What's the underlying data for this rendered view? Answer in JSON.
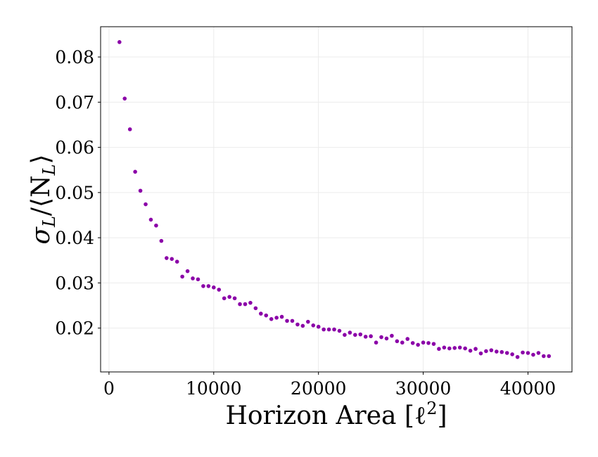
{
  "chart_data": {
    "type": "scatter",
    "xlabel": "Horizon Area [ℓ²]",
    "ylabel": "σ_L/⟨N_L⟩",
    "ylabel_main": "σ",
    "ylabel_sub": "L",
    "ylabel_mid": "/⟨N",
    "ylabel_sub2": "L",
    "ylabel_end": "⟩",
    "xlabel_main": "Horizon Area [ℓ",
    "xlabel_sup": "2",
    "xlabel_end": "]",
    "xlim": [
      -800,
      44200
    ],
    "ylim": [
      0.0103,
      0.0867
    ],
    "xticks": [
      0,
      10000,
      20000,
      30000,
      40000
    ],
    "xtick_labels": [
      "0",
      "10000",
      "20000",
      "30000",
      "40000"
    ],
    "yticks": [
      0.02,
      0.03,
      0.04,
      0.05,
      0.06,
      0.07,
      0.08
    ],
    "ytick_labels": [
      "0.02",
      "0.03",
      "0.04",
      "0.05",
      "0.06",
      "0.07",
      "0.08"
    ],
    "grid": true,
    "marker_color": "#8b00a8",
    "series": [
      {
        "x": [
          1000,
          1500,
          2000,
          2500,
          3000,
          3500,
          4000,
          4500,
          5000,
          5500,
          6000,
          6500,
          7000,
          7500,
          8000,
          8500,
          9000,
          9500,
          10000,
          10500,
          11000,
          11500,
          12000,
          12500,
          13000,
          13500,
          14000,
          14500,
          15000,
          15500,
          16000,
          16500,
          17000,
          17500,
          18000,
          18500,
          19000,
          19500,
          20000,
          20500,
          21000,
          21500,
          22000,
          22500,
          23000,
          23500,
          24000,
          24500,
          25000,
          25500,
          26000,
          26500,
          27000,
          27500,
          28000,
          28500,
          29000,
          29500,
          30000,
          30500,
          31000,
          31500,
          32000,
          32500,
          33000,
          33500,
          34000,
          34500,
          35000,
          35500,
          36000,
          36500,
          37000,
          37500,
          38000,
          38500,
          39000,
          39500,
          40000,
          40500,
          41000,
          41500,
          42000
        ],
        "y": [
          0.0833,
          0.0708,
          0.064,
          0.0546,
          0.0504,
          0.0474,
          0.044,
          0.0427,
          0.0393,
          0.0355,
          0.0353,
          0.0347,
          0.0314,
          0.0326,
          0.031,
          0.0308,
          0.0293,
          0.0293,
          0.029,
          0.0285,
          0.0266,
          0.0269,
          0.0266,
          0.0253,
          0.0253,
          0.0256,
          0.0244,
          0.0232,
          0.0228,
          0.022,
          0.0223,
          0.0225,
          0.0216,
          0.0216,
          0.0208,
          0.0205,
          0.0214,
          0.0206,
          0.0203,
          0.0197,
          0.0197,
          0.0197,
          0.0194,
          0.0185,
          0.019,
          0.0185,
          0.0186,
          0.0181,
          0.0182,
          0.0168,
          0.018,
          0.0177,
          0.0183,
          0.0171,
          0.0168,
          0.0176,
          0.0167,
          0.0163,
          0.0168,
          0.0167,
          0.0165,
          0.0154,
          0.0157,
          0.0155,
          0.0156,
          0.0157,
          0.0155,
          0.015,
          0.0154,
          0.0144,
          0.0149,
          0.0151,
          0.0148,
          0.0147,
          0.0145,
          0.0142,
          0.0136,
          0.0146,
          0.0145,
          0.0141,
          0.0145,
          0.0138,
          0.0138
        ]
      }
    ]
  }
}
